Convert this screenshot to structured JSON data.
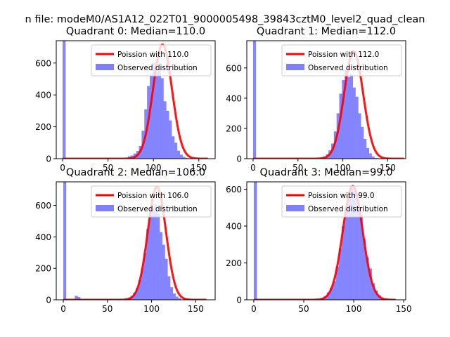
{
  "figure": {
    "suptitle": "n file: modeM0/AS1A12_022T01_9000005498_39843cztM0_level2_quad_clean"
  },
  "chart_data": [
    {
      "type": "bar",
      "title": "Quadrant 0: Median=110.0",
      "xlim": [
        -7,
        168
      ],
      "ylim": [
        0,
        740
      ],
      "xticks": [
        0,
        50,
        100,
        150
      ],
      "yticks": [
        0,
        200,
        400,
        600
      ],
      "legend": {
        "position": "top-right",
        "entries": [
          "Poission with 110.0",
          "Observed distribution"
        ]
      },
      "line": {
        "name": "Poission with 110.0",
        "mean": 110,
        "peak": 716,
        "x_start": 0,
        "x_end": 160,
        "color": "#ff0000"
      },
      "bars": {
        "name": "Observed distribution",
        "color": "#8080ff",
        "bin_width": 3.3,
        "edges": [
          0,
          66,
          69,
          72,
          75,
          78,
          81,
          84,
          87,
          90,
          93,
          96,
          99,
          102,
          105,
          108,
          111,
          114,
          117,
          120,
          123,
          126,
          129,
          132,
          135,
          138
        ],
        "heights": [
          740,
          0,
          5,
          15,
          20,
          32,
          48,
          80,
          175,
          310,
          455,
          530,
          600,
          540,
          560,
          505,
          360,
          300,
          240,
          140,
          100,
          50,
          25,
          12,
          5
        ]
      }
    },
    {
      "type": "bar",
      "title": "Quadrant 1: Median=112.0",
      "xlim": [
        -7,
        170
      ],
      "ylim": [
        0,
        780
      ],
      "xticks": [
        0,
        50,
        100,
        150
      ],
      "yticks": [
        0,
        200,
        400,
        600
      ],
      "legend": {
        "position": "top-right",
        "entries": [
          "Poission with 112.0",
          "Observed distribution"
        ]
      },
      "line": {
        "name": "Poission with 112.0",
        "mean": 112,
        "peak": 712,
        "x_start": 0,
        "x_end": 168,
        "color": "#ff0000"
      },
      "bars": {
        "name": "Observed distribution",
        "color": "#8080ff",
        "bin_width": 3.3,
        "edges": [
          0,
          69,
          72,
          75,
          78,
          81,
          84,
          87,
          90,
          93,
          96,
          99,
          102,
          105,
          108,
          111,
          114,
          117,
          120,
          123,
          126,
          129,
          132,
          135,
          138,
          141,
          144
        ],
        "heights": [
          780,
          0,
          5,
          10,
          15,
          30,
          55,
          100,
          180,
          300,
          430,
          520,
          590,
          540,
          560,
          470,
          410,
          300,
          210,
          130,
          70,
          35,
          15,
          5,
          3,
          2
        ]
      }
    },
    {
      "type": "bar",
      "title": "Quadrant 2: Median=106.0",
      "xlim": [
        -8,
        172
      ],
      "ylim": [
        0,
        750
      ],
      "xticks": [
        0,
        50,
        100,
        150
      ],
      "yticks": [
        0,
        200,
        400,
        600
      ],
      "legend": {
        "position": "top-right",
        "entries": [
          "Poission with 106.0",
          "Observed distribution"
        ]
      },
      "line": {
        "name": "Poission with 106.0",
        "mean": 106,
        "peak": 718,
        "x_start": 0,
        "x_end": 162,
        "color": "#ff0000"
      },
      "bars": {
        "name": "Observed distribution",
        "color": "#8080ff",
        "bin_width": 3.3,
        "edges": [
          0,
          10,
          13,
          16,
          67,
          70,
          73,
          76,
          79,
          82,
          85,
          88,
          91,
          94,
          97,
          100,
          103,
          106,
          109,
          112,
          115,
          118,
          121,
          124,
          127,
          130,
          133
        ],
        "heights": [
          750,
          0,
          25,
          18,
          0,
          8,
          15,
          25,
          45,
          75,
          125,
          200,
          300,
          450,
          560,
          580,
          610,
          550,
          430,
          350,
          260,
          150,
          80,
          40,
          20,
          10
        ]
      }
    },
    {
      "type": "bar",
      "title": "Quadrant 3: Median=99.0",
      "xlim": [
        -7,
        152
      ],
      "ylim": [
        0,
        640
      ],
      "xticks": [
        0,
        50,
        100,
        150
      ],
      "yticks": [
        0,
        200,
        400,
        600
      ],
      "legend": {
        "position": "top-right",
        "entries": [
          "Poission with 99.0",
          "Observed distribution"
        ]
      },
      "line": {
        "name": "Poission with 99.0",
        "mean": 99,
        "peak": 617,
        "x_start": 0,
        "x_end": 142,
        "color": "#ff0000"
      },
      "bars": {
        "name": "Observed distribution",
        "color": "#8080ff",
        "bin_width": 3.2,
        "edges": [
          0,
          64,
          67,
          70,
          73,
          76,
          79,
          82,
          85,
          88,
          91,
          94,
          97,
          100,
          103,
          106,
          109,
          112,
          115,
          118,
          121,
          124,
          127,
          130
        ],
        "heights": [
          640,
          0,
          8,
          20,
          40,
          65,
          100,
          180,
          280,
          400,
          500,
          560,
          610,
          590,
          510,
          460,
          330,
          230,
          170,
          90,
          50,
          25,
          10
        ]
      }
    }
  ]
}
